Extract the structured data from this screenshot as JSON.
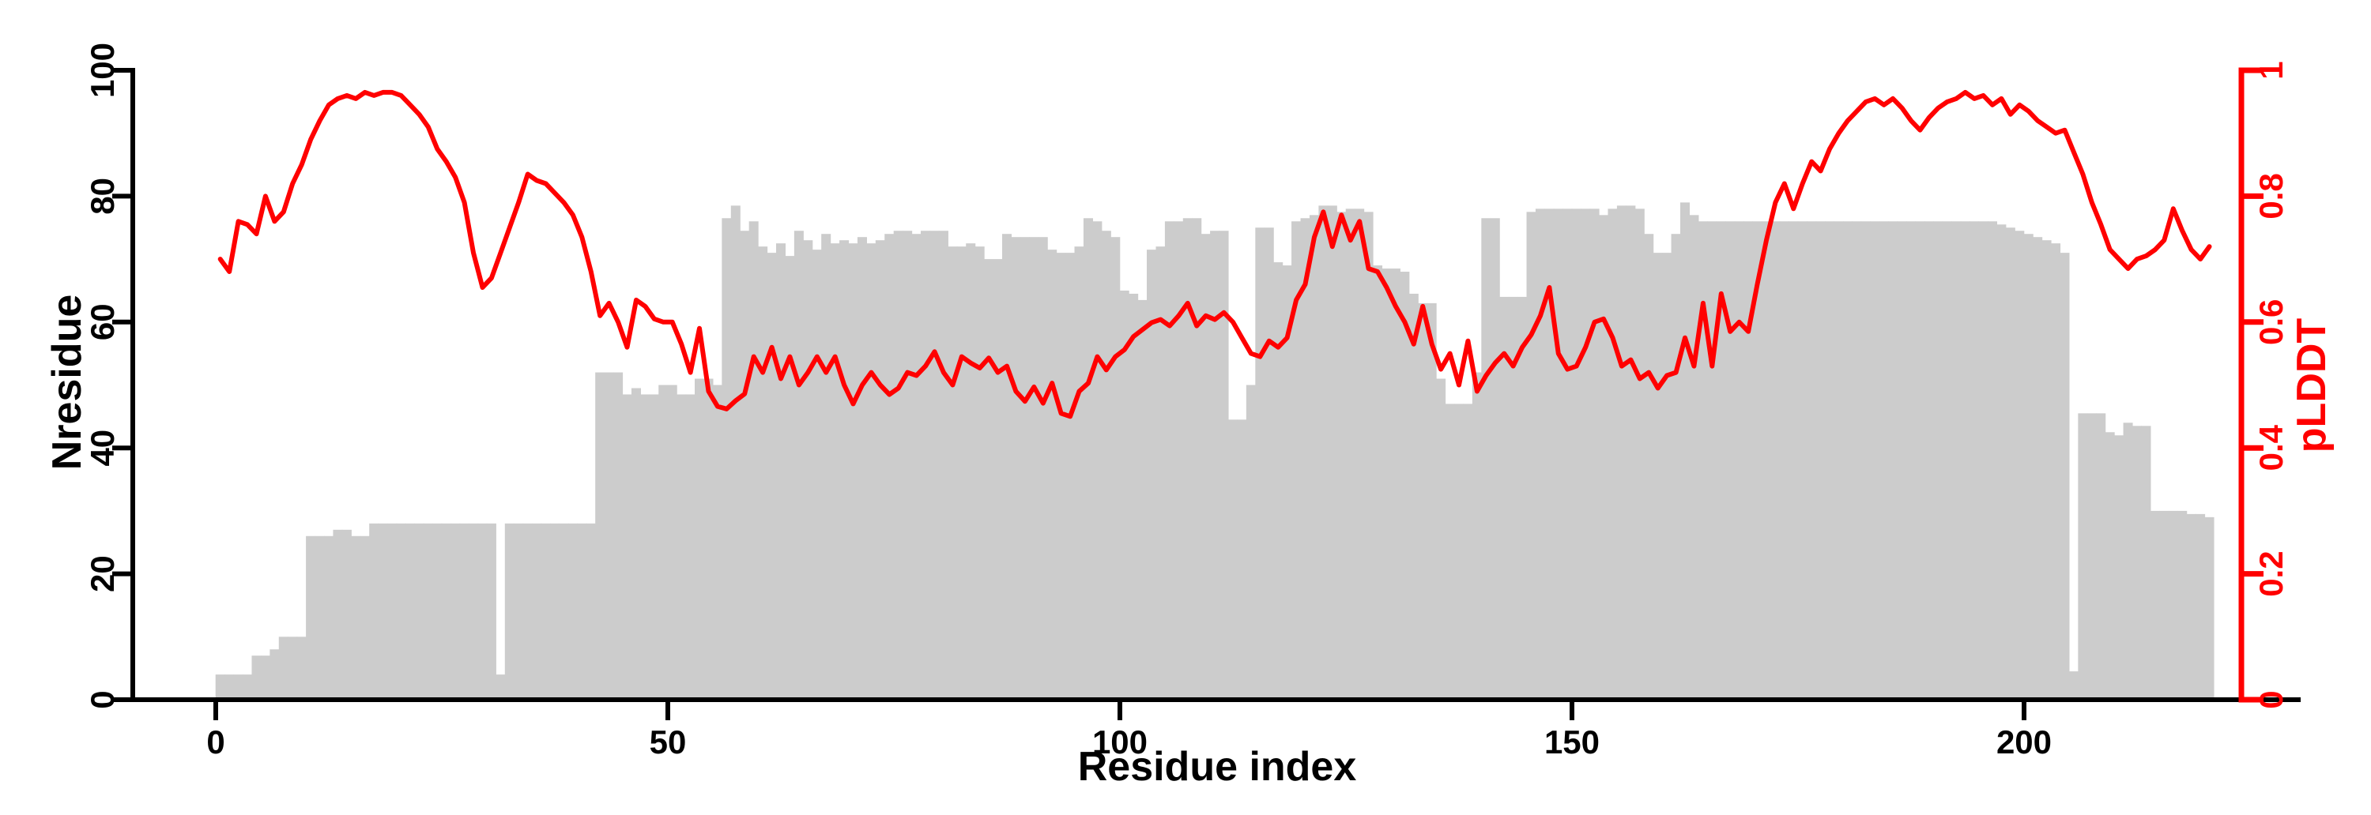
{
  "chart_data": {
    "type": "bar",
    "subtype": "bar+line dual axis",
    "title": "",
    "xlabel": "Residue index",
    "ylabel_left": "Nresidue",
    "ylabel_right": "pLDDT",
    "xlim": [
      0,
      224
    ],
    "ylim_left": [
      0,
      100
    ],
    "ylim_right": [
      0,
      1
    ],
    "x_ticks": [
      0,
      50,
      100,
      150,
      200
    ],
    "x_tick_labels": [
      "0",
      "50",
      "100",
      "150",
      "200"
    ],
    "y_left_ticks": [
      0,
      20,
      40,
      60,
      80,
      100
    ],
    "y_left_tick_labels": [
      "0",
      "20",
      "40",
      "60",
      "80",
      "100"
    ],
    "y_right_ticks": [
      0,
      0.2,
      0.4,
      0.6,
      0.8,
      1
    ],
    "y_right_tick_labels": [
      "0",
      "0.2",
      "0.4",
      "0.6",
      "0.8",
      "1"
    ],
    "grid": false,
    "legend": "none",
    "x_start": 1,
    "x_step": 1,
    "colors": {
      "bars": "#cccccc",
      "line": "#ff0000",
      "left_axis": "#000000",
      "right_axis": "#ff0000"
    },
    "series": [
      {
        "name": "Nresidue",
        "type": "bar",
        "axis": "left",
        "color": "#cccccc",
        "values": [
          4,
          4,
          4,
          4,
          7,
          7,
          8,
          10,
          10,
          10,
          26,
          26,
          26,
          27,
          27,
          26,
          26,
          28,
          28,
          28,
          28,
          28,
          28,
          28,
          28,
          28,
          28,
          28,
          28,
          28,
          28,
          4,
          28,
          28,
          28,
          28,
          28,
          28,
          28,
          28,
          28,
          28,
          52,
          52,
          52,
          48.5,
          49.5,
          48.5,
          48.5,
          50,
          50,
          48.5,
          48.5,
          51,
          51,
          50,
          76.5,
          78.5,
          74.5,
          76,
          72,
          71,
          72.5,
          70.5,
          74.5,
          73,
          71.5,
          74,
          72.5,
          73,
          72.5,
          73.5,
          72.5,
          73,
          74,
          74.5,
          74.5,
          74,
          74.5,
          74.5,
          74.5,
          72,
          72,
          72.5,
          72,
          70,
          70,
          74,
          73.5,
          73.5,
          73.5,
          73.5,
          71.5,
          71,
          71,
          72,
          76.5,
          76,
          74.5,
          73.5,
          65,
          64.5,
          63.5,
          71.5,
          72,
          76,
          76,
          76.5,
          76.5,
          74,
          74.5,
          74.5,
          44.5,
          44.5,
          50,
          75,
          75,
          69.5,
          69,
          76,
          76.5,
          77,
          78.5,
          78.5,
          77.5,
          78,
          78,
          77.5,
          69,
          68.5,
          68.5,
          68,
          64.5,
          63,
          63,
          51,
          47,
          47,
          47,
          52,
          76.5,
          76.5,
          64,
          64,
          64,
          77.5,
          78,
          78,
          78,
          78,
          78,
          78,
          78,
          77,
          78,
          78.5,
          78.5,
          78,
          74,
          71,
          71,
          74,
          79,
          77,
          76,
          76,
          76,
          76,
          76,
          76,
          76,
          76,
          76,
          76,
          76,
          76,
          76,
          76,
          76,
          76,
          76,
          76,
          76,
          76,
          76,
          76,
          76,
          76,
          76,
          76,
          76,
          76,
          76,
          76,
          76,
          76,
          76,
          75.5,
          75,
          74.5,
          74,
          73.5,
          73,
          72.5,
          71,
          4.5,
          45.5,
          45.5,
          45.5,
          42.5,
          42,
          44,
          43.5,
          43.5,
          30,
          30,
          30,
          30,
          29.5,
          29.5,
          29
        ]
      },
      {
        "name": "pLDDT",
        "type": "line",
        "axis": "right",
        "color": "#ff0000",
        "values": [
          0.7,
          0.68,
          0.76,
          0.755,
          0.74,
          0.8,
          0.76,
          0.775,
          0.82,
          0.85,
          0.89,
          0.92,
          0.945,
          0.955,
          0.96,
          0.955,
          0.965,
          0.96,
          0.965,
          0.965,
          0.96,
          0.945,
          0.93,
          0.91,
          0.875,
          0.855,
          0.83,
          0.79,
          0.71,
          0.655,
          0.67,
          0.71,
          0.75,
          0.79,
          0.835,
          0.825,
          0.82,
          0.805,
          0.79,
          0.77,
          0.735,
          0.68,
          0.61,
          0.63,
          0.6,
          0.56,
          0.635,
          0.625,
          0.605,
          0.6,
          0.6,
          0.565,
          0.52,
          0.59,
          0.49,
          0.466,
          0.462,
          0.475,
          0.486,
          0.545,
          0.52,
          0.56,
          0.51,
          0.545,
          0.5,
          0.52,
          0.545,
          0.52,
          0.545,
          0.5,
          0.47,
          0.5,
          0.52,
          0.5,
          0.485,
          0.495,
          0.52,
          0.515,
          0.53,
          0.553,
          0.52,
          0.5,
          0.545,
          0.535,
          0.527,
          0.543,
          0.52,
          0.53,
          0.49,
          0.474,
          0.497,
          0.471,
          0.503,
          0.455,
          0.45,
          0.49,
          0.503,
          0.545,
          0.524,
          0.545,
          0.556,
          0.577,
          0.588,
          0.599,
          0.604,
          0.594,
          0.61,
          0.63,
          0.594,
          0.61,
          0.604,
          0.615,
          0.6,
          0.575,
          0.55,
          0.545,
          0.57,
          0.56,
          0.575,
          0.635,
          0.66,
          0.735,
          0.775,
          0.72,
          0.77,
          0.73,
          0.76,
          0.685,
          0.68,
          0.655,
          0.625,
          0.6,
          0.565,
          0.625,
          0.565,
          0.525,
          0.55,
          0.5,
          0.57,
          0.49,
          0.515,
          0.535,
          0.55,
          0.53,
          0.56,
          0.58,
          0.61,
          0.655,
          0.55,
          0.525,
          0.53,
          0.56,
          0.6,
          0.605,
          0.575,
          0.53,
          0.54,
          0.51,
          0.52,
          0.495,
          0.515,
          0.52,
          0.575,
          0.53,
          0.63,
          0.53,
          0.645,
          0.585,
          0.6,
          0.585,
          0.66,
          0.73,
          0.79,
          0.82,
          0.78,
          0.82,
          0.855,
          0.84,
          0.875,
          0.9,
          0.92,
          0.935,
          0.95,
          0.955,
          0.945,
          0.955,
          0.94,
          0.92,
          0.905,
          0.925,
          0.94,
          0.95,
          0.955,
          0.965,
          0.955,
          0.96,
          0.945,
          0.955,
          0.93,
          0.945,
          0.935,
          0.92,
          0.91,
          0.9,
          0.905,
          0.87,
          0.835,
          0.79,
          0.755,
          0.715,
          0.7,
          0.685,
          0.7,
          0.705,
          0.715,
          0.73,
          0.78,
          0.745,
          0.715,
          0.7,
          0.72
        ]
      }
    ]
  }
}
